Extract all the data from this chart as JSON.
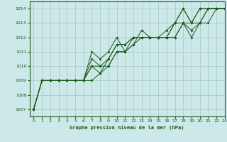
{
  "title": "Graphe pression niveau de la mer (hPa)",
  "background_color": "#cce8e8",
  "grid_color": "#aacccc",
  "line_color": "#1a5c1a",
  "xlim": [
    -0.5,
    23
  ],
  "ylim": [
    1006.5,
    1014.5
  ],
  "yticks": [
    1007,
    1008,
    1009,
    1010,
    1011,
    1012,
    1013,
    1014
  ],
  "xticks": [
    0,
    1,
    2,
    3,
    4,
    5,
    6,
    7,
    8,
    9,
    10,
    11,
    12,
    13,
    14,
    15,
    16,
    17,
    18,
    19,
    20,
    21,
    22,
    23
  ],
  "series": [
    [
      1007.0,
      1009.0,
      1009.0,
      1009.0,
      1009.0,
      1009.0,
      1009.0,
      1009.0,
      1009.5,
      1010.0,
      1011.0,
      1011.0,
      1011.5,
      1012.0,
      1012.0,
      1012.0,
      1012.0,
      1012.0,
      1013.0,
      1012.0,
      1013.0,
      1013.0,
      1014.0,
      1014.0
    ],
    [
      1007.0,
      1009.0,
      1009.0,
      1009.0,
      1009.0,
      1009.0,
      1009.0,
      1010.0,
      1010.0,
      1010.0,
      1011.0,
      1011.0,
      1012.0,
      1012.0,
      1012.0,
      1012.0,
      1012.0,
      1012.0,
      1013.0,
      1012.5,
      1013.0,
      1014.0,
      1014.0,
      1014.0
    ],
    [
      1007.0,
      1009.0,
      1009.0,
      1009.0,
      1009.0,
      1009.0,
      1009.0,
      1010.0,
      1009.5,
      1010.5,
      1011.5,
      1011.5,
      1012.0,
      1012.0,
      1012.0,
      1012.0,
      1012.0,
      1013.0,
      1013.0,
      1013.0,
      1014.0,
      1014.0,
      1014.0,
      1014.0
    ],
    [
      1007.0,
      1009.0,
      1009.0,
      1009.0,
      1009.0,
      1009.0,
      1009.0,
      1011.0,
      1010.5,
      1011.0,
      1012.0,
      1011.0,
      1011.5,
      1012.5,
      1012.0,
      1012.0,
      1012.5,
      1013.0,
      1014.0,
      1013.0,
      1013.0,
      1014.0,
      1014.0,
      1014.0
    ],
    [
      1007.0,
      1009.0,
      1009.0,
      1009.0,
      1009.0,
      1009.0,
      1009.0,
      1010.5,
      1010.0,
      1010.5,
      1011.5,
      1011.5,
      1012.0,
      1012.0,
      1012.0,
      1012.0,
      1012.0,
      1013.0,
      1014.0,
      1013.0,
      1014.0,
      1014.0,
      1014.0,
      1014.0
    ]
  ]
}
